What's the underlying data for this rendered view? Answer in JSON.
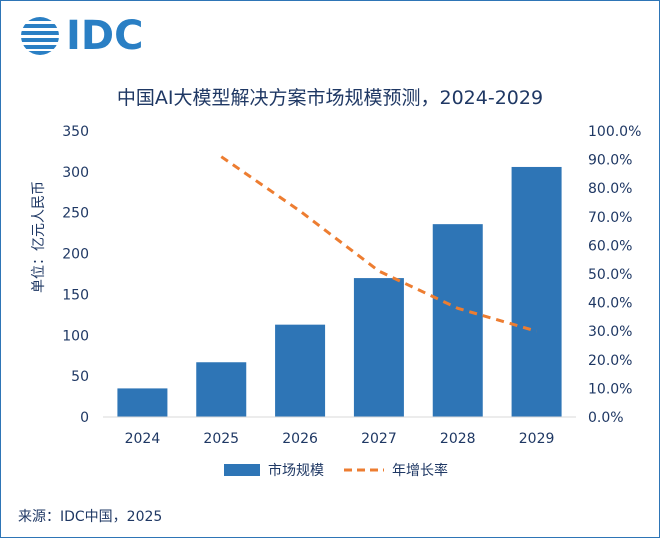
{
  "brand": {
    "name": "IDC",
    "color": "#2a7fc4"
  },
  "source_note": "来源：IDC中国，2025",
  "colors": {
    "bar": "#2e75b6",
    "line": "#ed7d31",
    "text": "#1f3864",
    "axis": "#000000"
  },
  "chart_data": {
    "type": "bar",
    "title": "中国AI大模型解决方案市场规模预测，2024-2029",
    "categories": [
      "2024",
      "2025",
      "2026",
      "2027",
      "2028",
      "2029"
    ],
    "ylabel": "单位：亿元人民币",
    "ylim": [
      0,
      350
    ],
    "yticks": [
      0,
      50,
      100,
      150,
      200,
      250,
      300,
      350
    ],
    "y2lim": [
      0,
      100
    ],
    "y2ticks": [
      "0.0%",
      "10.0%",
      "20.0%",
      "30.0%",
      "40.0%",
      "50.0%",
      "60.0%",
      "70.0%",
      "80.0%",
      "90.0%",
      "100.0%"
    ],
    "series": [
      {
        "name": "市场规模",
        "type": "bar",
        "axis": "left",
        "values": [
          35,
          67,
          113,
          170,
          236,
          306
        ]
      },
      {
        "name": "年增长率",
        "type": "line",
        "style": "dashed",
        "axis": "right",
        "values": [
          null,
          91.0,
          72.0,
          51.0,
          38.0,
          30.0
        ]
      }
    ],
    "legend": "bottom"
  }
}
